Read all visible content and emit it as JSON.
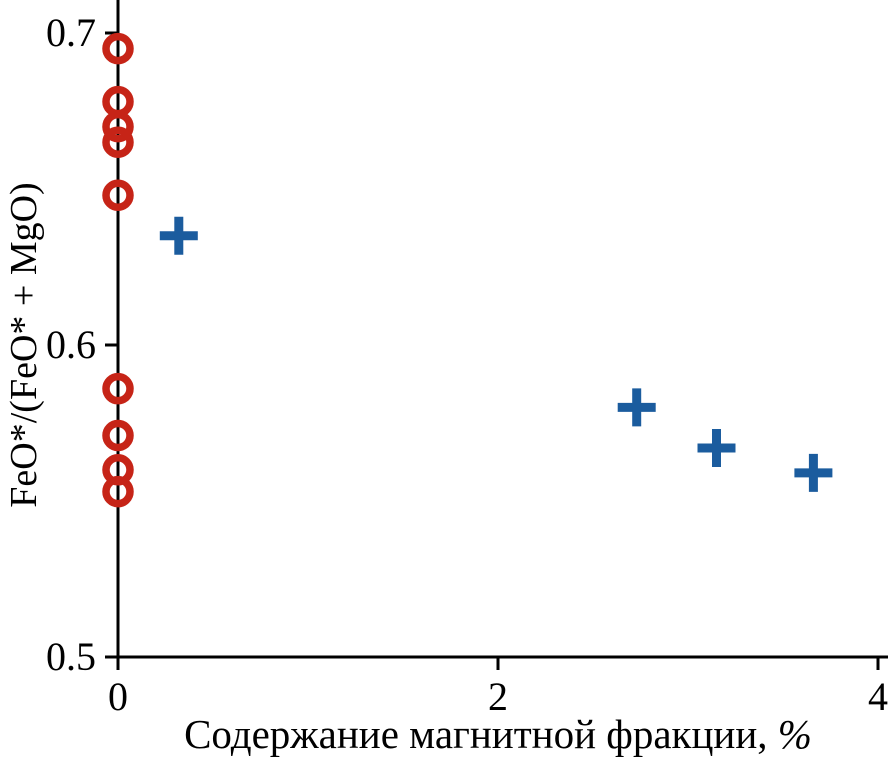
{
  "chart_data": {
    "type": "scatter",
    "title": "",
    "xlabel": "Содержание магнитной фракции, %",
    "ylabel": "FeO*/(FeO* + MgO)",
    "xlim": [
      0,
      4
    ],
    "ylim": [
      0.5,
      0.7
    ],
    "x_ticks": [
      0,
      2,
      4
    ],
    "y_ticks": [
      0.5,
      0.6,
      0.7
    ],
    "grid": false,
    "legend": "none",
    "background": "#ffffff",
    "axis_color": "#000000",
    "series": [
      {
        "name": "red-open-circles",
        "marker": "open-circle",
        "color": "#c62417",
        "points": [
          {
            "x": 0,
            "y": 0.695
          },
          {
            "x": 0,
            "y": 0.678
          },
          {
            "x": 0,
            "y": 0.67
          },
          {
            "x": 0,
            "y": 0.665
          },
          {
            "x": 0,
            "y": 0.648
          },
          {
            "x": 0,
            "y": 0.586
          },
          {
            "x": 0,
            "y": 0.571
          },
          {
            "x": 0,
            "y": 0.56
          },
          {
            "x": 0,
            "y": 0.553
          }
        ]
      },
      {
        "name": "blue-crosses",
        "marker": "plus",
        "color": "#1b5c9e",
        "points": [
          {
            "x": 0.32,
            "y": 0.635
          },
          {
            "x": 2.73,
            "y": 0.58
          },
          {
            "x": 3.15,
            "y": 0.567
          },
          {
            "x": 3.66,
            "y": 0.559
          }
        ]
      }
    ]
  }
}
